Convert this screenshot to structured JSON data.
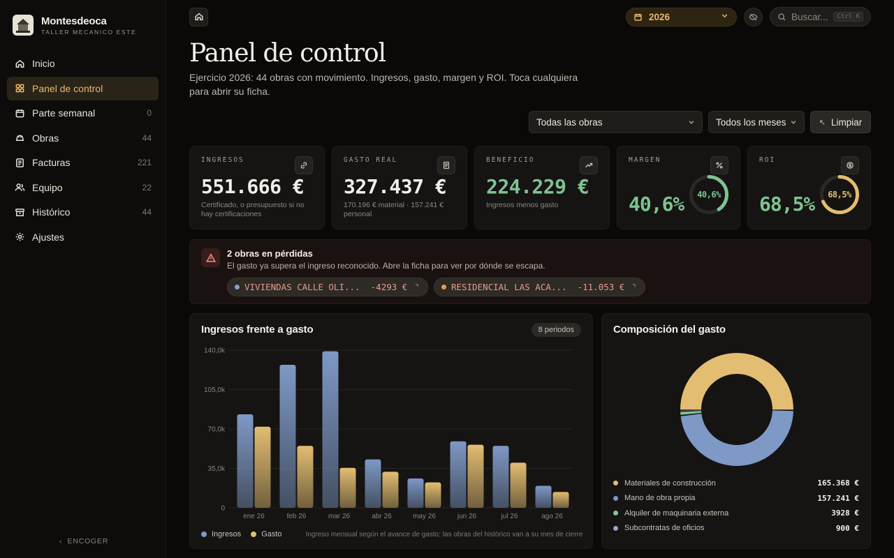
{
  "brand": {
    "name": "Montesdeoca",
    "subtitle": "TALLER MECANICO ESTE"
  },
  "nav": [
    {
      "label": "Inicio",
      "count": "",
      "icon": "home-icon"
    },
    {
      "label": "Panel de control",
      "count": "",
      "icon": "grid-icon",
      "active": true
    },
    {
      "label": "Parte semanal",
      "count": "0",
      "icon": "calendar-icon"
    },
    {
      "label": "Obras",
      "count": "44",
      "icon": "hardhat-icon"
    },
    {
      "label": "Facturas",
      "count": "221",
      "icon": "document-icon"
    },
    {
      "label": "Equipo",
      "count": "22",
      "icon": "users-icon"
    },
    {
      "label": "Histórico",
      "count": "44",
      "icon": "archive-icon"
    },
    {
      "label": "Ajustes",
      "count": "",
      "icon": "gear-icon"
    }
  ],
  "collapse_label": "ENCOGER",
  "topbar": {
    "year": "2026",
    "search_placeholder": "Buscar...",
    "search_shortcut": "Ctrl K"
  },
  "page": {
    "title": "Panel de control",
    "subtitle": "Ejercicio 2026: 44 obras con movimiento. Ingresos, gasto, margen y ROI. Toca cualquiera para abrir su ficha."
  },
  "filters": {
    "obras": "Todas las obras",
    "meses": "Todos los meses",
    "clear": "Limpiar"
  },
  "kpis": {
    "ingresos": {
      "label": "INGRESOS",
      "value": "551.666 €",
      "note": "Certificado, o presupuesto si no hay certificaciones"
    },
    "gasto": {
      "label": "GASTO REAL",
      "value": "327.437 €",
      "note": "170.196 € material · 157.241 € personal"
    },
    "beneficio": {
      "label": "BENEFICIO",
      "value": "224.229 €",
      "note": "Ingresos menos gasto"
    },
    "margen": {
      "label": "MARGEN",
      "value": "40,6%",
      "ring_label": "40,6%",
      "fraction": 0.406,
      "color": "#7fc391"
    },
    "roi": {
      "label": "ROI",
      "value": "68,5%",
      "ring_label": "68,5%",
      "fraction": 0.685,
      "color": "#e3bd72"
    }
  },
  "alert": {
    "title": "2 obras en pérdidas",
    "text": "El gasto ya supera el ingreso reconocido. Abre la ficha para ver por dónde se escapa.",
    "chips": [
      {
        "name": "VIVIENDAS CALLE OLI...",
        "value": "-4293 €",
        "dot_color": "#8aa2c8",
        "text_color": "#e79a8f"
      },
      {
        "name": "RESIDENCIAL LAS ACA...",
        "value": "-11.053 €",
        "dot_color": "#e3a04e",
        "text_color": "#e79a8f"
      }
    ]
  },
  "income_chart": {
    "title": "Ingresos frente a gasto",
    "badge": "8 periodos",
    "legend_note": "Ingreso mensual según el avance de gasto; las obras del histórico van a su mes de cierre"
  },
  "expense_chart": {
    "title": "Composición del gasto",
    "items": [
      {
        "name": "Materiales de construcción",
        "value": "165.368 €",
        "color": "#e3bd72"
      },
      {
        "name": "Mano de obra propia",
        "value": "157.241 €",
        "color": "#7e99c6"
      },
      {
        "name": "Alquiler de maquinaria externa",
        "value": "3928 €",
        "color": "#85c594"
      },
      {
        "name": "Subcontratas de oficios",
        "value": "900 €",
        "color": "#a99bd4"
      }
    ]
  },
  "chart_data": [
    {
      "type": "bar",
      "title": "Ingresos frente a gasto",
      "categories": [
        "ene 26",
        "feb 26",
        "mar 26",
        "abr 26",
        "may 26",
        "jun 26",
        "jul 26",
        "ago 26"
      ],
      "series": [
        {
          "name": "Ingresos",
          "color": "#7e99c6",
          "values": [
            83000,
            127000,
            139000,
            43000,
            26000,
            59000,
            55000,
            19500
          ]
        },
        {
          "name": "Gasto",
          "color": "#e3bd72",
          "values": [
            72000,
            55000,
            35500,
            32000,
            22500,
            56000,
            40000,
            14000
          ]
        }
      ],
      "ylim": [
        0,
        140000
      ],
      "yticks": [
        "0",
        "35,0k",
        "70,0k",
        "105,0k",
        "140,0k"
      ],
      "ytick_values": [
        0,
        35000,
        70000,
        105000,
        140000
      ],
      "grid": true,
      "legend": "bottom-left"
    },
    {
      "type": "pie",
      "title": "Composición del gasto",
      "donut": true,
      "categories": [
        "Materiales de construcción",
        "Mano de obra propia",
        "Alquiler de maquinaria externa",
        "Subcontratas de oficios"
      ],
      "values": [
        165368,
        157241,
        3928,
        900
      ],
      "colors": [
        "#e3bd72",
        "#7e99c6",
        "#85c594",
        "#a99bd4"
      ]
    }
  ]
}
